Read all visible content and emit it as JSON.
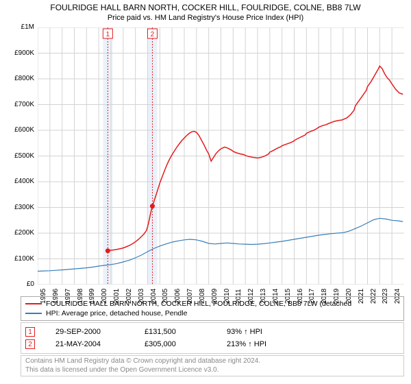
{
  "title": "FOULRIDGE HALL BARN NORTH, COCKER HILL, FOULRIDGE, COLNE, BB8 7LW",
  "subtitle": "Price paid vs. HM Land Registry's House Price Index (HPI)",
  "chart": {
    "type": "line",
    "xlim": [
      1995,
      2025
    ],
    "ylim": [
      0,
      1000000
    ],
    "x_ticks": [
      1995,
      1996,
      1997,
      1998,
      1999,
      2000,
      2001,
      2002,
      2003,
      2004,
      2005,
      2006,
      2007,
      2008,
      2009,
      2010,
      2011,
      2012,
      2013,
      2014,
      2015,
      2016,
      2017,
      2018,
      2019,
      2020,
      2021,
      2022,
      2023,
      2024
    ],
    "y_ticks": [
      0,
      100000,
      200000,
      300000,
      400000,
      500000,
      600000,
      700000,
      800000,
      900000,
      1000000
    ],
    "y_tick_labels": [
      "£0",
      "£100K",
      "£200K",
      "£300K",
      "£400K",
      "£500K",
      "£600K",
      "£700K",
      "£800K",
      "£900K",
      "£1M"
    ],
    "background_color": "#ffffff",
    "grid_color": "#d3d3d3",
    "series": [
      {
        "name": "property",
        "color": "#e41a1c",
        "width": 1.5,
        "data": [
          [
            2000.74,
            131500
          ],
          [
            2000.9,
            133000
          ],
          [
            2001.1,
            134000
          ],
          [
            2001.3,
            135500
          ],
          [
            2001.5,
            137000
          ],
          [
            2001.7,
            139000
          ],
          [
            2001.9,
            141000
          ],
          [
            2002.1,
            144000
          ],
          [
            2002.3,
            148000
          ],
          [
            2002.5,
            152000
          ],
          [
            2002.7,
            157000
          ],
          [
            2002.9,
            163000
          ],
          [
            2003.1,
            170000
          ],
          [
            2003.3,
            178000
          ],
          [
            2003.5,
            187000
          ],
          [
            2003.7,
            197000
          ],
          [
            2003.9,
            210000
          ],
          [
            2004.0,
            225000
          ],
          [
            2004.1,
            245000
          ],
          [
            2004.2,
            268000
          ],
          [
            2004.3,
            288000
          ],
          [
            2004.39,
            305000
          ],
          [
            2004.6,
            335000
          ],
          [
            2004.8,
            365000
          ],
          [
            2005.0,
            395000
          ],
          [
            2005.2,
            420000
          ],
          [
            2005.4,
            445000
          ],
          [
            2005.6,
            468000
          ],
          [
            2005.8,
            488000
          ],
          [
            2006.0,
            505000
          ],
          [
            2006.2,
            520000
          ],
          [
            2006.4,
            535000
          ],
          [
            2006.6,
            548000
          ],
          [
            2006.8,
            560000
          ],
          [
            2007.0,
            570000
          ],
          [
            2007.2,
            580000
          ],
          [
            2007.4,
            588000
          ],
          [
            2007.6,
            594000
          ],
          [
            2007.8,
            596000
          ],
          [
            2008.0,
            592000
          ],
          [
            2008.2,
            580000
          ],
          [
            2008.4,
            562000
          ],
          [
            2008.6,
            545000
          ],
          [
            2008.8,
            525000
          ],
          [
            2009.0,
            508000
          ],
          [
            2009.2,
            480000
          ],
          [
            2009.4,
            495000
          ],
          [
            2009.6,
            510000
          ],
          [
            2009.8,
            520000
          ],
          [
            2010.0,
            528000
          ],
          [
            2010.3,
            535000
          ],
          [
            2010.6,
            530000
          ],
          [
            2010.9,
            522000
          ],
          [
            2011.0,
            518000
          ],
          [
            2011.3,
            512000
          ],
          [
            2011.6,
            508000
          ],
          [
            2011.9,
            505000
          ],
          [
            2012.0,
            502000
          ],
          [
            2012.3,
            498000
          ],
          [
            2012.6,
            495000
          ],
          [
            2012.9,
            493000
          ],
          [
            2013.0,
            492000
          ],
          [
            2013.3,
            495000
          ],
          [
            2013.6,
            500000
          ],
          [
            2013.9,
            508000
          ],
          [
            2014.0,
            515000
          ],
          [
            2014.3,
            522000
          ],
          [
            2014.6,
            530000
          ],
          [
            2014.9,
            536000
          ],
          [
            2015.0,
            540000
          ],
          [
            2015.3,
            545000
          ],
          [
            2015.6,
            550000
          ],
          [
            2015.9,
            556000
          ],
          [
            2016.0,
            560000
          ],
          [
            2016.3,
            568000
          ],
          [
            2016.6,
            575000
          ],
          [
            2016.9,
            582000
          ],
          [
            2017.0,
            588000
          ],
          [
            2017.3,
            595000
          ],
          [
            2017.6,
            600000
          ],
          [
            2017.9,
            608000
          ],
          [
            2018.0,
            612000
          ],
          [
            2018.3,
            618000
          ],
          [
            2018.6,
            622000
          ],
          [
            2018.9,
            628000
          ],
          [
            2019.0,
            630000
          ],
          [
            2019.3,
            635000
          ],
          [
            2019.6,
            638000
          ],
          [
            2019.9,
            640000
          ],
          [
            2020.0,
            642000
          ],
          [
            2020.3,
            648000
          ],
          [
            2020.6,
            660000
          ],
          [
            2020.9,
            678000
          ],
          [
            2021.0,
            695000
          ],
          [
            2021.3,
            715000
          ],
          [
            2021.6,
            735000
          ],
          [
            2021.9,
            755000
          ],
          [
            2022.0,
            770000
          ],
          [
            2022.3,
            790000
          ],
          [
            2022.6,
            815000
          ],
          [
            2022.9,
            840000
          ],
          [
            2023.0,
            850000
          ],
          [
            2023.2,
            840000
          ],
          [
            2023.4,
            820000
          ],
          [
            2023.6,
            805000
          ],
          [
            2023.8,
            795000
          ],
          [
            2024.0,
            780000
          ],
          [
            2024.3,
            760000
          ],
          [
            2024.6,
            745000
          ],
          [
            2024.9,
            740000
          ]
        ]
      },
      {
        "name": "hpi",
        "color": "#377eb8",
        "width": 1.2,
        "data": [
          [
            1995.0,
            52000
          ],
          [
            1995.5,
            53000
          ],
          [
            1996.0,
            54000
          ],
          [
            1996.5,
            55500
          ],
          [
            1997.0,
            57000
          ],
          [
            1997.5,
            59000
          ],
          [
            1998.0,
            61000
          ],
          [
            1998.5,
            63000
          ],
          [
            1999.0,
            65000
          ],
          [
            1999.5,
            68000
          ],
          [
            2000.0,
            72000
          ],
          [
            2000.5,
            75000
          ],
          [
            2001.0,
            78000
          ],
          [
            2001.5,
            82000
          ],
          [
            2002.0,
            88000
          ],
          [
            2002.5,
            95000
          ],
          [
            2003.0,
            104000
          ],
          [
            2003.5,
            115000
          ],
          [
            2004.0,
            128000
          ],
          [
            2004.5,
            140000
          ],
          [
            2005.0,
            150000
          ],
          [
            2005.5,
            158000
          ],
          [
            2006.0,
            165000
          ],
          [
            2006.5,
            170000
          ],
          [
            2007.0,
            174000
          ],
          [
            2007.5,
            176000
          ],
          [
            2008.0,
            174000
          ],
          [
            2008.5,
            168000
          ],
          [
            2009.0,
            160000
          ],
          [
            2009.5,
            158000
          ],
          [
            2010.0,
            160000
          ],
          [
            2010.5,
            162000
          ],
          [
            2011.0,
            160000
          ],
          [
            2011.5,
            158000
          ],
          [
            2012.0,
            157000
          ],
          [
            2012.5,
            156000
          ],
          [
            2013.0,
            157000
          ],
          [
            2013.5,
            159000
          ],
          [
            2014.0,
            162000
          ],
          [
            2014.5,
            165000
          ],
          [
            2015.0,
            168000
          ],
          [
            2015.5,
            172000
          ],
          [
            2016.0,
            176000
          ],
          [
            2016.5,
            180000
          ],
          [
            2017.0,
            184000
          ],
          [
            2017.5,
            188000
          ],
          [
            2018.0,
            192000
          ],
          [
            2018.5,
            195000
          ],
          [
            2019.0,
            198000
          ],
          [
            2019.5,
            200000
          ],
          [
            2020.0,
            202000
          ],
          [
            2020.5,
            208000
          ],
          [
            2021.0,
            218000
          ],
          [
            2021.5,
            228000
          ],
          [
            2022.0,
            240000
          ],
          [
            2022.5,
            252000
          ],
          [
            2023.0,
            258000
          ],
          [
            2023.5,
            255000
          ],
          [
            2024.0,
            250000
          ],
          [
            2024.5,
            248000
          ],
          [
            2024.9,
            245000
          ]
        ]
      }
    ],
    "markers": [
      {
        "x": 2000.74,
        "y": 131500,
        "label": "1",
        "color": "#e41a1c"
      },
      {
        "x": 2004.39,
        "y": 305000,
        "label": "2",
        "color": "#e41a1c"
      }
    ]
  },
  "legend": {
    "items": [
      {
        "color": "#e41a1c",
        "label": "FOULRIDGE HALL BARN NORTH, COCKER HILL, FOULRIDGE, COLNE, BB8 7LW (detached"
      },
      {
        "color": "#377eb8",
        "label": "HPI: Average price, detached house, Pendle"
      }
    ]
  },
  "events": [
    {
      "num": "1",
      "date": "29-SEP-2000",
      "price": "£131,500",
      "pct": "93% ↑ HPI"
    },
    {
      "num": "2",
      "date": "21-MAY-2004",
      "price": "£305,000",
      "pct": "213% ↑ HPI"
    }
  ],
  "footer": {
    "line1": "Contains HM Land Registry data © Crown copyright and database right 2024.",
    "line2": "This data is licensed under the Open Government Licence v3.0."
  }
}
